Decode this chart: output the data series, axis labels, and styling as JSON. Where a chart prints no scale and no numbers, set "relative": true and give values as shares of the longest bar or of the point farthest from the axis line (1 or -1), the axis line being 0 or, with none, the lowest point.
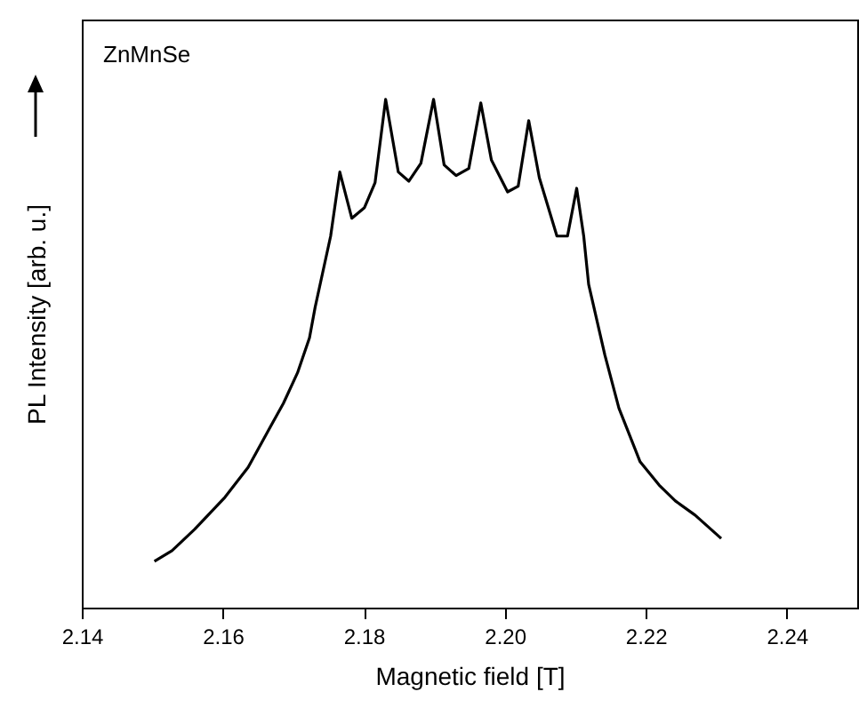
{
  "chart_data": {
    "type": "line",
    "relative": true,
    "xlabel": "Magnetic field [T]",
    "ylabel": "PL Intensity [arb. u.]",
    "annotations": [
      "ZnMnSe"
    ],
    "xlim": [
      2.14,
      2.25
    ],
    "xticks": [
      2.14,
      2.16,
      2.18,
      {
        "value": 2.2,
        "label": "2.20"
      },
      2.22,
      2.24
    ],
    "grid": false,
    "marker": "none",
    "line_style": "solid",
    "series": [
      {
        "color": "#000000",
        "x": [
          2.1503,
          2.1528,
          2.156,
          2.1603,
          2.1636,
          2.1668,
          2.1686,
          2.1706,
          2.1723,
          2.1731,
          2.1753,
          2.1766,
          2.1783,
          2.1801,
          2.1816,
          2.1831,
          2.1849,
          2.1864,
          2.1881,
          2.1899,
          2.1914,
          2.1931,
          2.1949,
          2.1966,
          2.1981,
          2.2004,
          2.2019,
          2.2034,
          2.2049,
          2.2074,
          2.2089,
          2.2102,
          2.2112,
          2.2119,
          2.2142,
          2.2162,
          2.2192,
          2.2219,
          2.2242,
          2.227,
          2.2307
        ],
        "values": [
          0.091,
          0.112,
          0.154,
          0.217,
          0.276,
          0.357,
          0.402,
          0.462,
          0.531,
          0.591,
          0.731,
          0.857,
          0.766,
          0.787,
          0.836,
          1.0,
          0.857,
          0.839,
          0.874,
          1.0,
          0.871,
          0.85,
          0.864,
          0.993,
          0.881,
          0.818,
          0.829,
          0.958,
          0.846,
          0.731,
          0.731,
          0.825,
          0.731,
          0.636,
          0.497,
          0.392,
          0.287,
          0.241,
          0.21,
          0.182,
          0.136
        ]
      }
    ]
  }
}
